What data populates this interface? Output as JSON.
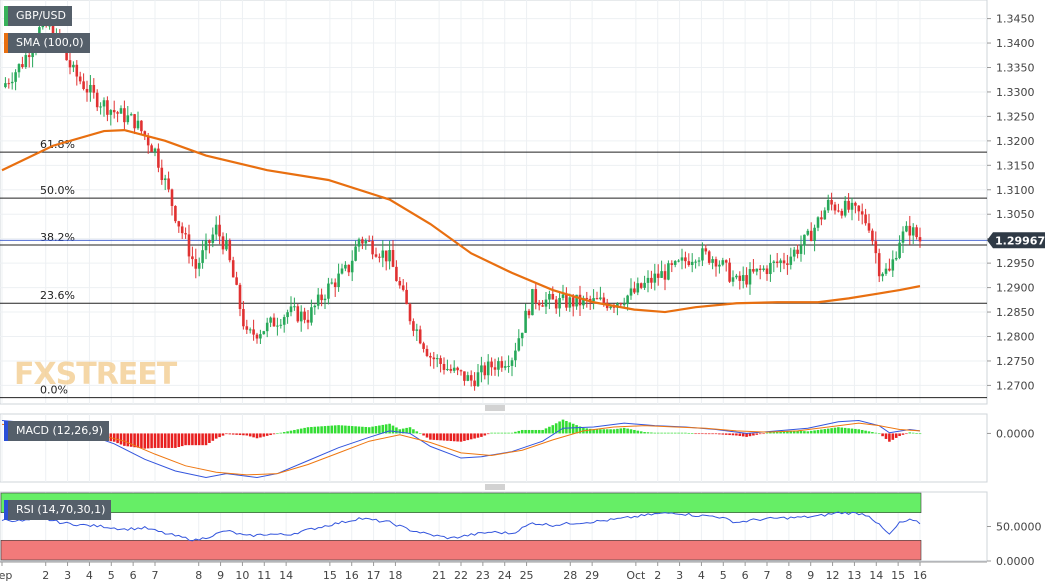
{
  "chart_data": [
    {
      "type": "candlestick",
      "symbol": "GBP/USD",
      "indicator_label": "SMA (100,0)",
      "y_ticks": [
        "1.3450",
        "1.3400",
        "1.3350",
        "1.3300",
        "1.3250",
        "1.3200",
        "1.3150",
        "1.3100",
        "1.3050",
        "1.3000",
        "1.2950",
        "1.2900",
        "1.2850",
        "1.2800",
        "1.2750",
        "1.2700"
      ],
      "ylim": [
        1.2662,
        1.3488
      ],
      "last_price": "1.29967",
      "fibonacci_levels": [
        {
          "label": "61.8%",
          "value": 1.3177
        },
        {
          "label": "50.0%",
          "value": 1.3083
        },
        {
          "label": "38.2%",
          "value": 1.2987
        },
        {
          "label": "23.6%",
          "value": 1.2868
        },
        {
          "label": "0.0%",
          "value": 1.2675
        }
      ],
      "price_line": 1.29967,
      "close_path": [
        [
          0,
          1.331
        ],
        [
          2,
          1.336
        ],
        [
          4,
          1.344
        ],
        [
          5,
          1.342
        ],
        [
          7,
          1.334
        ],
        [
          9,
          1.329
        ],
        [
          11,
          1.326
        ],
        [
          13,
          1.324
        ],
        [
          15,
          1.318
        ],
        [
          17,
          1.305
        ],
        [
          19,
          1.294
        ],
        [
          21,
          1.302
        ],
        [
          22,
          1.298
        ],
        [
          24,
          1.28
        ],
        [
          26,
          1.282
        ],
        [
          28,
          1.285
        ],
        [
          30,
          1.284
        ],
        [
          32,
          1.29
        ],
        [
          34,
          1.294
        ],
        [
          35,
          1.3
        ],
        [
          36,
          1.299
        ],
        [
          38,
          1.296
        ],
        [
          40,
          1.284
        ],
        [
          42,
          1.276
        ],
        [
          44,
          1.273
        ],
        [
          46,
          1.271
        ],
        [
          48,
          1.274
        ],
        [
          50,
          1.276
        ],
        [
          52,
          1.288
        ],
        [
          54,
          1.287
        ],
        [
          56,
          1.287
        ],
        [
          58,
          1.287
        ],
        [
          60,
          1.287
        ],
        [
          62,
          1.289
        ],
        [
          64,
          1.292
        ],
        [
          66,
          1.294
        ],
        [
          68,
          1.297
        ],
        [
          70,
          1.296
        ],
        [
          72,
          1.291
        ],
        [
          74,
          1.293
        ],
        [
          75,
          1.294
        ],
        [
          77,
          1.296
        ],
        [
          79,
          1.3
        ],
        [
          81,
          1.307
        ],
        [
          83,
          1.306
        ],
        [
          84,
          1.305
        ],
        [
          85,
          1.303
        ],
        [
          86,
          1.294
        ],
        [
          87,
          1.293
        ],
        [
          88,
          1.3
        ],
        [
          89,
          1.302
        ],
        [
          90,
          1.2997
        ]
      ],
      "sma_100": [
        [
          0,
          1.314
        ],
        [
          5,
          1.319
        ],
        [
          10,
          1.322
        ],
        [
          12,
          1.3222
        ],
        [
          16,
          1.32
        ],
        [
          20,
          1.317
        ],
        [
          26,
          1.314
        ],
        [
          32,
          1.312
        ],
        [
          38,
          1.308
        ],
        [
          42,
          1.303
        ],
        [
          46,
          1.297
        ],
        [
          50,
          1.293
        ],
        [
          54,
          1.2895
        ],
        [
          58,
          1.287
        ],
        [
          62,
          1.2855
        ],
        [
          65,
          1.285
        ],
        [
          68,
          1.286
        ],
        [
          72,
          1.2868
        ],
        [
          76,
          1.287
        ],
        [
          80,
          1.287
        ],
        [
          83,
          1.2878
        ],
        [
          86,
          1.2888
        ],
        [
          88,
          1.2895
        ],
        [
          90,
          1.2903
        ]
      ]
    },
    {
      "type": "line",
      "indicator_label": "MACD (12,26,9)",
      "y_ticks": [
        "0.0000"
      ],
      "series": [
        {
          "role": "macd",
          "color": "#3355dd",
          "points": [
            [
              0,
              0.002
            ],
            [
              3,
              0.0016
            ],
            [
              6,
              0.0008
            ],
            [
              9,
              -0.0005
            ],
            [
              11,
              -0.0016
            ],
            [
              14,
              -0.004
            ],
            [
              17,
              -0.0058
            ],
            [
              20,
              -0.0068
            ],
            [
              22,
              -0.0062
            ],
            [
              25,
              -0.0068
            ],
            [
              27,
              -0.0062
            ],
            [
              30,
              -0.0042
            ],
            [
              33,
              -0.0022
            ],
            [
              36,
              -0.0006
            ],
            [
              38,
              0.0004
            ],
            [
              40,
              0.0
            ],
            [
              42,
              -0.002
            ],
            [
              45,
              -0.0038
            ],
            [
              47,
              -0.0036
            ],
            [
              50,
              -0.0028
            ],
            [
              53,
              -0.0012
            ],
            [
              55,
              0.0008
            ],
            [
              58,
              0.001
            ],
            [
              61,
              0.0016
            ],
            [
              64,
              0.0012
            ],
            [
              67,
              0.001
            ],
            [
              70,
              0.0006
            ],
            [
              73,
              0.0
            ],
            [
              76,
              0.0004
            ],
            [
              79,
              0.0008
            ],
            [
              82,
              0.0018
            ],
            [
              84,
              0.002
            ],
            [
              86,
              0.0012
            ],
            [
              87,
              0.0001
            ],
            [
              89,
              0.0006
            ],
            [
              90,
              0.0004
            ]
          ]
        },
        {
          "role": "signal",
          "color": "#ee7711",
          "points": [
            [
              0,
              0.0014
            ],
            [
              3,
              0.0012
            ],
            [
              6,
              0.0006
            ],
            [
              9,
              0.0
            ],
            [
              12,
              -0.0012
            ],
            [
              15,
              -0.0032
            ],
            [
              18,
              -0.005
            ],
            [
              21,
              -0.006
            ],
            [
              24,
              -0.0064
            ],
            [
              27,
              -0.0062
            ],
            [
              30,
              -0.0048
            ],
            [
              33,
              -0.003
            ],
            [
              36,
              -0.0012
            ],
            [
              39,
              -0.0002
            ],
            [
              42,
              -0.0014
            ],
            [
              45,
              -0.003
            ],
            [
              48,
              -0.0034
            ],
            [
              51,
              -0.0026
            ],
            [
              54,
              -0.001
            ],
            [
              57,
              0.0004
            ],
            [
              60,
              0.001
            ],
            [
              63,
              0.0012
            ],
            [
              66,
              0.001
            ],
            [
              69,
              0.0008
            ],
            [
              72,
              0.0004
            ],
            [
              75,
              0.0002
            ],
            [
              78,
              0.0004
            ],
            [
              81,
              0.001
            ],
            [
              84,
              0.0016
            ],
            [
              86,
              0.0012
            ],
            [
              88,
              0.0006
            ],
            [
              90,
              0.0004
            ]
          ]
        }
      ]
    },
    {
      "type": "line",
      "indicator_label": "RSI (14,70,30,1)",
      "y_ticks": [
        "50.0000",
        "0.0000"
      ],
      "ylim": [
        0,
        100
      ],
      "overbought": 70,
      "oversold": 30,
      "series": [
        {
          "role": "rsi",
          "color": "#3355dd",
          "points": [
            [
              0,
              60
            ],
            [
              2,
              58
            ],
            [
              4,
              62
            ],
            [
              6,
              55
            ],
            [
              8,
              52
            ],
            [
              10,
              50
            ],
            [
              12,
              46
            ],
            [
              14,
              48
            ],
            [
              16,
              40
            ],
            [
              18,
              33
            ],
            [
              19,
              30
            ],
            [
              20,
              34
            ],
            [
              22,
              44
            ],
            [
              24,
              36
            ],
            [
              26,
              39
            ],
            [
              28,
              38
            ],
            [
              30,
              45
            ],
            [
              32,
              52
            ],
            [
              34,
              58
            ],
            [
              35,
              62
            ],
            [
              36,
              60
            ],
            [
              38,
              56
            ],
            [
              40,
              45
            ],
            [
              42,
              38
            ],
            [
              44,
              33
            ],
            [
              46,
              38
            ],
            [
              48,
              42
            ],
            [
              50,
              40
            ],
            [
              52,
              55
            ],
            [
              54,
              52
            ],
            [
              56,
              55
            ],
            [
              58,
              57
            ],
            [
              60,
              60
            ],
            [
              62,
              64
            ],
            [
              64,
              68
            ],
            [
              66,
              70
            ],
            [
              68,
              66
            ],
            [
              70,
              65
            ],
            [
              72,
              56
            ],
            [
              74,
              60
            ],
            [
              76,
              62
            ],
            [
              78,
              63
            ],
            [
              80,
              65
            ],
            [
              82,
              70
            ],
            [
              84,
              69
            ],
            [
              85,
              66
            ],
            [
              86,
              52
            ],
            [
              87,
              38
            ],
            [
              88,
              55
            ],
            [
              89,
              59
            ],
            [
              90,
              55
            ]
          ]
        }
      ]
    }
  ],
  "x_axis": {
    "labels": [
      {
        "t": 0,
        "text": "Sep"
      },
      {
        "t": 2,
        "text": "2"
      },
      {
        "t": 3,
        "text": "3"
      },
      {
        "t": 4,
        "text": "4"
      },
      {
        "t": 5,
        "text": "5"
      },
      {
        "t": 6,
        "text": "6"
      },
      {
        "t": 7,
        "text": "7"
      },
      {
        "t": 9,
        "text": "8"
      },
      {
        "t": 10,
        "text": "9"
      },
      {
        "t": 11,
        "text": "10"
      },
      {
        "t": 12,
        "text": "11"
      },
      {
        "t": 13,
        "text": "14"
      },
      {
        "t": 15,
        "text": "15"
      },
      {
        "t": 16,
        "text": "16"
      },
      {
        "t": 17,
        "text": "17"
      },
      {
        "t": 18,
        "text": "18"
      },
      {
        "t": 20,
        "text": "21"
      },
      {
        "t": 21,
        "text": "22"
      },
      {
        "t": 22,
        "text": "23"
      },
      {
        "t": 23,
        "text": "24"
      },
      {
        "t": 24,
        "text": "25"
      },
      {
        "t": 26,
        "text": "28"
      },
      {
        "t": 27,
        "text": "29"
      },
      {
        "t": 29,
        "text": "Oct"
      },
      {
        "t": 30,
        "text": "2"
      },
      {
        "t": 31,
        "text": "3"
      },
      {
        "t": 32,
        "text": "4"
      },
      {
        "t": 33,
        "text": "5"
      },
      {
        "t": 34,
        "text": "6"
      },
      {
        "t": 35,
        "text": "7"
      },
      {
        "t": 36,
        "text": "8"
      },
      {
        "t": 37,
        "text": "9"
      },
      {
        "t": 38,
        "text": "12"
      },
      {
        "t": 39,
        "text": "13"
      },
      {
        "t": 40,
        "text": "14"
      },
      {
        "t": 41,
        "text": "15"
      },
      {
        "t": 42,
        "text": "16"
      }
    ]
  },
  "watermark": "FXSTREET",
  "colors": {
    "bull": "#27a85a",
    "bear": "#e03131",
    "sma": "#e86f10",
    "fib_line": "#222222",
    "price_line": "#3355cc",
    "price_tag": "#2f3a46",
    "label_bg": "#555f6a",
    "rsi_upper": "#66ee66",
    "rsi_lower": "#f27a7a",
    "macd_hist_pos": "#33dd33",
    "macd_hist_neg": "#e82020"
  }
}
